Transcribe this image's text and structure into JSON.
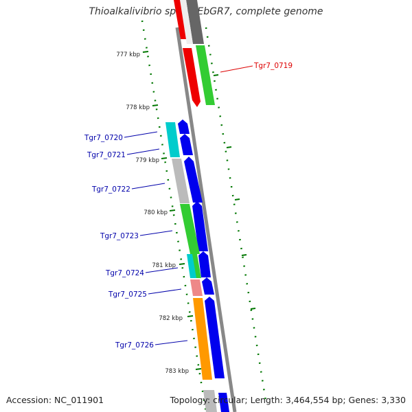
{
  "title": "Thioalkalivibrio sp. HL-EbGR7, complete genome",
  "footer": {
    "accession": "Accession: NC_011901",
    "summary": "Topology: circular; Length: 3,464,554 bp; Genes: 3,330"
  },
  "ticks": [
    "777 kbp",
    "778 kbp",
    "779 kbp",
    "780 kbp",
    "781 kbp",
    "782 kbp",
    "783 kbp"
  ],
  "gene_labels": [
    {
      "id": "Tgr7_0719",
      "color": "#dd0000"
    },
    {
      "id": "Tgr7_0720",
      "color": "#0000aa"
    },
    {
      "id": "Tgr7_0721",
      "color": "#0000aa"
    },
    {
      "id": "Tgr7_0722",
      "color": "#0000aa"
    },
    {
      "id": "Tgr7_0723",
      "color": "#0000aa"
    },
    {
      "id": "Tgr7_0724",
      "color": "#0000aa"
    },
    {
      "id": "Tgr7_0725",
      "color": "#0000aa"
    },
    {
      "id": "Tgr7_0726",
      "color": "#0000aa"
    }
  ],
  "colors": {
    "forward_strand": "#0000ee",
    "reverse_strand": "#ff0000",
    "backbone": "#888888",
    "tick_marks": "#007700",
    "cog_cyan": "#00cccc",
    "cog_gray": "#bbbbbb",
    "cog_green": "#33cc33",
    "cog_pink": "#ee8888",
    "cog_orange": "#ff9900",
    "cog_dark": "#666666"
  }
}
